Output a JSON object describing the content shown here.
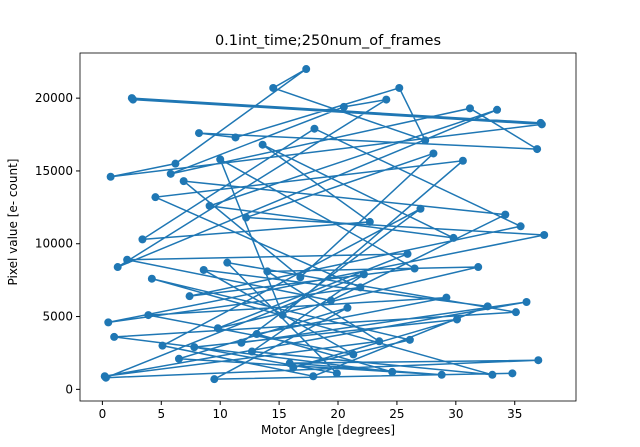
{
  "chart_data": {
    "type": "line",
    "title": "0.1int_time;250num_of_frames",
    "x_label": "Motor Angle [degrees]",
    "y_label": "Pixel value [e- count]",
    "color": "#1f77b4",
    "markers": true,
    "x": [
      2.5,
      37.2,
      2.6,
      37.3,
      0.7,
      6.2,
      17.3,
      14.5,
      27.4,
      25.2,
      11.3,
      8.2,
      36.9,
      31.2,
      5.8,
      20.5,
      24.1,
      1.3,
      33.5,
      9.1,
      29.8,
      13.6,
      22.7,
      3.4,
      18.0,
      35.5,
      7.4,
      26.5,
      10.0,
      15.3,
      30.6,
      4.5,
      21.9,
      0.5,
      37.5,
      12.2,
      28.1,
      16.8,
      6.9,
      34.2,
      19.4,
      2.1,
      25.9,
      9.8,
      31.9,
      14.0,
      23.5,
      0.2,
      36.0,
      11.8,
      27.0,
      5.1,
      17.9,
      32.7,
      8.6,
      21.3,
      3.9,
      29.2,
      13.1,
      24.6,
      1.0,
      35.1,
      10.6,
      19.9,
      7.8,
      30.1,
      16.2,
      26.1,
      4.2,
      33.1,
      12.7,
      22.2,
      0.3,
      37.0,
      15.9,
      28.8,
      6.5,
      20.8,
      9.5,
      34.8
    ],
    "values": [
      20000,
      18300,
      19900,
      18200,
      14600,
      15500,
      22000,
      20700,
      17100,
      20700,
      17300,
      17600,
      16500,
      19300,
      14800,
      19400,
      19900,
      8400,
      19200,
      12600,
      10400,
      16800,
      11500,
      10300,
      17900,
      11200,
      6400,
      8300,
      15800,
      5100,
      15700,
      13200,
      7000,
      4600,
      10600,
      11800,
      16200,
      7700,
      14300,
      12000,
      6100,
      8900,
      9300,
      4200,
      8400,
      8100,
      3300,
      900,
      6000,
      3200,
      12400,
      3000,
      900,
      5700,
      8200,
      2400,
      5100,
      6300,
      3800,
      1200,
      3600,
      5300,
      8700,
      1100,
      2900,
      4800,
      1500,
      3400,
      7600,
      1000,
      2600,
      7900,
      800,
      2000,
      1800,
      1000,
      2100,
      5600,
      700,
      1100
    ],
    "xlim": [
      -1.9,
      40.2
    ],
    "xticks": [
      0,
      5,
      10,
      15,
      20,
      25,
      30,
      35
    ],
    "ylim": [
      -800,
      23100
    ],
    "yticks": [
      0,
      5000,
      10000,
      15000,
      20000
    ]
  }
}
